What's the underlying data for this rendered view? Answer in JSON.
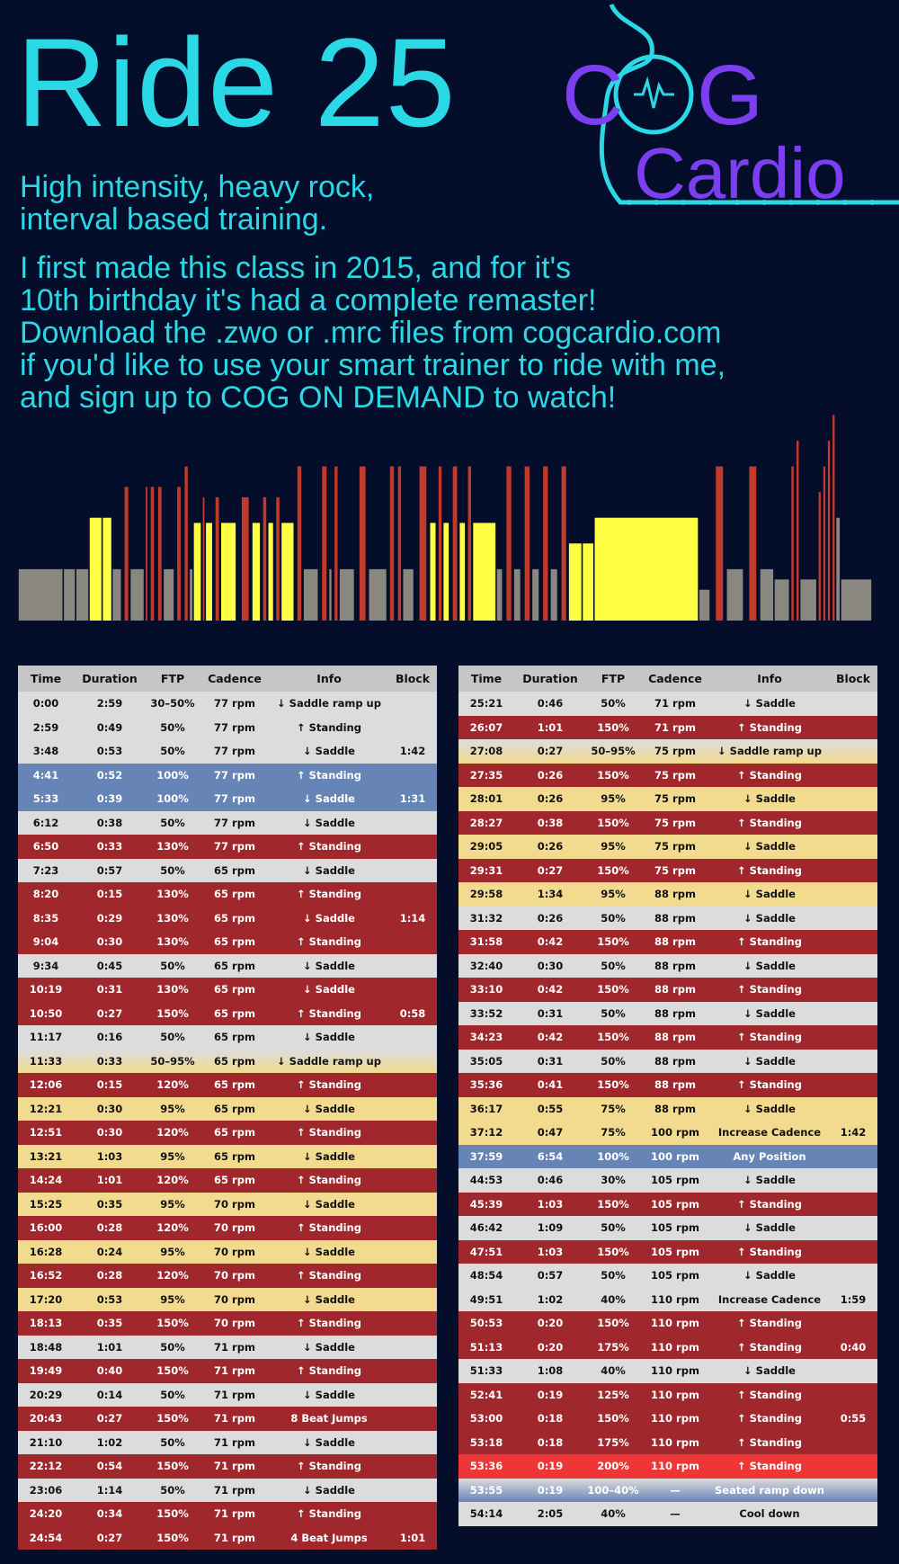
{
  "title": "Ride 25",
  "subtitle": [
    "High intensity, heavy rock,",
    "interval based training."
  ],
  "description": [
    "I first made this class in 2015, and for it's",
    "10th birthday it's had a complete remaster!",
    "Download the .zwo or .mrc files from cogcardio.com",
    "if you'd like to use your smart trainer to ride with me,",
    "and sign up to COG ON DEMAND to watch!"
  ],
  "logo": {
    "line1_a": "C",
    "line1_b": "G",
    "line2": "Cardio"
  },
  "colors": {
    "cyan": "#2ad8e6",
    "purple": "#7b3ff0",
    "red": "#c0392b",
    "yellow": "#ffff44",
    "grey": "#8a8680",
    "navy": "#2c3e6a",
    "bg": "#040d2a"
  },
  "columns": [
    "Time",
    "Duration",
    "FTP",
    "Cadence",
    "Info",
    "Block"
  ],
  "left_rows": [
    [
      "w",
      "0:00",
      "2:59",
      "30–50%",
      "77 rpm",
      "↓ Saddle ramp up",
      ""
    ],
    [
      "w",
      "2:59",
      "0:49",
      "50%",
      "77 rpm",
      "↑ Standing",
      ""
    ],
    [
      "w",
      "3:48",
      "0:53",
      "50%",
      "77 rpm",
      "↓ Saddle",
      "1:42"
    ],
    [
      "b",
      "4:41",
      "0:52",
      "100%",
      "77 rpm",
      "↑ Standing",
      ""
    ],
    [
      "b",
      "5:33",
      "0:39",
      "100%",
      "77 rpm",
      "↓ Saddle",
      "1:31"
    ],
    [
      "w",
      "6:12",
      "0:38",
      "50%",
      "77 rpm",
      "↓ Saddle",
      ""
    ],
    [
      "r",
      "6:50",
      "0:33",
      "130%",
      "77 rpm",
      "↑ Standing",
      ""
    ],
    [
      "w",
      "7:23",
      "0:57",
      "50%",
      "65 rpm",
      "↓ Saddle",
      ""
    ],
    [
      "r",
      "8:20",
      "0:15",
      "130%",
      "65 rpm",
      "↑ Standing",
      ""
    ],
    [
      "r",
      "8:35",
      "0:29",
      "130%",
      "65 rpm",
      "↓ Saddle",
      "1:14"
    ],
    [
      "r",
      "9:04",
      "0:30",
      "130%",
      "65 rpm",
      "↑ Standing",
      ""
    ],
    [
      "w",
      "9:34",
      "0:45",
      "50%",
      "65 rpm",
      "↓ Saddle",
      ""
    ],
    [
      "r",
      "10:19",
      "0:31",
      "130%",
      "65 rpm",
      "↓ Saddle",
      ""
    ],
    [
      "r",
      "10:50",
      "0:27",
      "150%",
      "65 rpm",
      "↑ Standing",
      "0:58"
    ],
    [
      "w",
      "11:17",
      "0:16",
      "50%",
      "65 rpm",
      "↓ Saddle",
      ""
    ],
    [
      "gy",
      "11:33",
      "0:33",
      "50–95%",
      "65 rpm",
      "↓ Saddle ramp up",
      ""
    ],
    [
      "r",
      "12:06",
      "0:15",
      "120%",
      "65 rpm",
      "↑ Standing",
      ""
    ],
    [
      "y",
      "12:21",
      "0:30",
      "95%",
      "65 rpm",
      "↓ Saddle",
      ""
    ],
    [
      "r",
      "12:51",
      "0:30",
      "120%",
      "65 rpm",
      "↑ Standing",
      ""
    ],
    [
      "y",
      "13:21",
      "1:03",
      "95%",
      "65 rpm",
      "↓ Saddle",
      ""
    ],
    [
      "r",
      "14:24",
      "1:01",
      "120%",
      "65 rpm",
      "↑ Standing",
      ""
    ],
    [
      "y",
      "15:25",
      "0:35",
      "95%",
      "70 rpm",
      "↓ Saddle",
      ""
    ],
    [
      "r",
      "16:00",
      "0:28",
      "120%",
      "70 rpm",
      "↑ Standing",
      ""
    ],
    [
      "y",
      "16:28",
      "0:24",
      "95%",
      "70 rpm",
      "↓ Saddle",
      ""
    ],
    [
      "r",
      "16:52",
      "0:28",
      "120%",
      "70 rpm",
      "↑ Standing",
      ""
    ],
    [
      "y",
      "17:20",
      "0:53",
      "95%",
      "70 rpm",
      "↓ Saddle",
      ""
    ],
    [
      "r",
      "18:13",
      "0:35",
      "150%",
      "70 rpm",
      "↑ Standing",
      ""
    ],
    [
      "w",
      "18:48",
      "1:01",
      "50%",
      "71 rpm",
      "↓ Saddle",
      ""
    ],
    [
      "r",
      "19:49",
      "0:40",
      "150%",
      "71 rpm",
      "↑ Standing",
      ""
    ],
    [
      "w",
      "20:29",
      "0:14",
      "50%",
      "71 rpm",
      "↓ Saddle",
      ""
    ],
    [
      "r",
      "20:43",
      "0:27",
      "150%",
      "71 rpm",
      "8 Beat Jumps",
      ""
    ],
    [
      "w",
      "21:10",
      "1:02",
      "50%",
      "71 rpm",
      "↓ Saddle",
      ""
    ],
    [
      "r",
      "22:12",
      "0:54",
      "150%",
      "71 rpm",
      "↑ Standing",
      ""
    ],
    [
      "w",
      "23:06",
      "1:14",
      "50%",
      "71 rpm",
      "↓ Saddle",
      ""
    ],
    [
      "r",
      "24:20",
      "0:34",
      "150%",
      "71 rpm",
      "↑ Standing",
      ""
    ],
    [
      "r",
      "24:54",
      "0:27",
      "150%",
      "71 rpm",
      "4 Beat Jumps",
      "1:01"
    ]
  ],
  "right_rows": [
    [
      "w",
      "25:21",
      "0:46",
      "50%",
      "71 rpm",
      "↓ Saddle",
      ""
    ],
    [
      "r",
      "26:07",
      "1:01",
      "150%",
      "71 rpm",
      "↑ Standing",
      ""
    ],
    [
      "gy",
      "27:08",
      "0:27",
      "50–95%",
      "75 rpm",
      "↓ Saddle ramp up",
      ""
    ],
    [
      "r",
      "27:35",
      "0:26",
      "150%",
      "75 rpm",
      "↑ Standing",
      ""
    ],
    [
      "y",
      "28:01",
      "0:26",
      "95%",
      "75 rpm",
      "↓ Saddle",
      ""
    ],
    [
      "r",
      "28:27",
      "0:38",
      "150%",
      "75 rpm",
      "↑ Standing",
      ""
    ],
    [
      "y",
      "29:05",
      "0:26",
      "95%",
      "75 rpm",
      "↓ Saddle",
      ""
    ],
    [
      "r",
      "29:31",
      "0:27",
      "150%",
      "75 rpm",
      "↑ Standing",
      ""
    ],
    [
      "y",
      "29:58",
      "1:34",
      "95%",
      "88 rpm",
      "↓ Saddle",
      ""
    ],
    [
      "w",
      "31:32",
      "0:26",
      "50%",
      "88 rpm",
      "↓ Saddle",
      ""
    ],
    [
      "r",
      "31:58",
      "0:42",
      "150%",
      "88 rpm",
      "↑ Standing",
      ""
    ],
    [
      "w",
      "32:40",
      "0:30",
      "50%",
      "88 rpm",
      "↓ Saddle",
      ""
    ],
    [
      "r",
      "33:10",
      "0:42",
      "150%",
      "88 rpm",
      "↑ Standing",
      ""
    ],
    [
      "w",
      "33:52",
      "0:31",
      "50%",
      "88 rpm",
      "↓ Saddle",
      ""
    ],
    [
      "r",
      "34:23",
      "0:42",
      "150%",
      "88 rpm",
      "↑ Standing",
      ""
    ],
    [
      "w",
      "35:05",
      "0:31",
      "50%",
      "88 rpm",
      "↓ Saddle",
      ""
    ],
    [
      "r",
      "35:36",
      "0:41",
      "150%",
      "88 rpm",
      "↑ Standing",
      ""
    ],
    [
      "y",
      "36:17",
      "0:55",
      "75%",
      "88 rpm",
      "↓ Saddle",
      ""
    ],
    [
      "y",
      "37:12",
      "0:47",
      "75%",
      "100 rpm",
      "Increase Cadence",
      "1:42"
    ],
    [
      "b",
      "37:59",
      "6:54",
      "100%",
      "100 rpm",
      "Any Position",
      ""
    ],
    [
      "w",
      "44:53",
      "0:46",
      "30%",
      "105 rpm",
      "↓ Saddle",
      ""
    ],
    [
      "r",
      "45:39",
      "1:03",
      "150%",
      "105 rpm",
      "↑ Standing",
      ""
    ],
    [
      "w",
      "46:42",
      "1:09",
      "50%",
      "105 rpm",
      "↓ Saddle",
      ""
    ],
    [
      "r",
      "47:51",
      "1:03",
      "150%",
      "105 rpm",
      "↑ Standing",
      ""
    ],
    [
      "w",
      "48:54",
      "0:57",
      "50%",
      "105 rpm",
      "↓ Saddle",
      ""
    ],
    [
      "w",
      "49:51",
      "1:02",
      "40%",
      "110 rpm",
      "Increase Cadence",
      "1:59"
    ],
    [
      "r",
      "50:53",
      "0:20",
      "150%",
      "110 rpm",
      "↑ Standing",
      ""
    ],
    [
      "r",
      "51:13",
      "0:20",
      "175%",
      "110 rpm",
      "↑ Standing",
      "0:40"
    ],
    [
      "w",
      "51:33",
      "1:08",
      "40%",
      "110 rpm",
      "↓ Saddle",
      ""
    ],
    [
      "r",
      "52:41",
      "0:19",
      "125%",
      "110 rpm",
      "↑ Standing",
      ""
    ],
    [
      "r",
      "53:00",
      "0:18",
      "150%",
      "110 rpm",
      "↑ Standing",
      "0:55"
    ],
    [
      "r",
      "53:18",
      "0:18",
      "175%",
      "110 rpm",
      "↑ Standing",
      ""
    ],
    [
      "br",
      "53:36",
      "0:19",
      "200%",
      "110 rpm",
      "↑ Standing",
      ""
    ],
    [
      "gb",
      "53:55",
      "0:19",
      "100–40%",
      "—",
      "Seated ramp down",
      ""
    ],
    [
      "w",
      "54:14",
      "2:05",
      "40%",
      "—",
      "Cool down",
      ""
    ]
  ]
}
